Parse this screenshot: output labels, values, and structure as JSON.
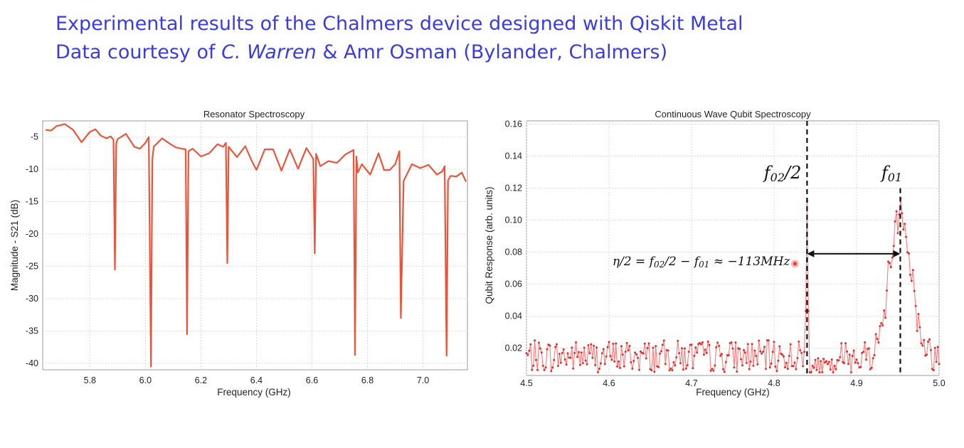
{
  "header": {
    "line1": "Experimental results of the Chalmers device designed with Qiskit Metal",
    "line2_prefix": "Data courtesy of ",
    "line2_italic": "C. Warren",
    "line2_suffix": " & Amr Osman (Bylander, Chalmers)"
  },
  "colors": {
    "title": "#3b3be0",
    "series": "#e8553a",
    "series_light": "#ff6f6f",
    "point": "#d93030"
  },
  "chart_data": [
    {
      "type": "line",
      "title": "Resonator Spectroscopy",
      "xlabel": "Frequency (GHz)",
      "ylabel": "Magnitude - S21 (dB)",
      "xlim": [
        5.63,
        7.16
      ],
      "ylim": [
        -41,
        -2.5
      ],
      "xticks": [
        "5.8",
        "6.0",
        "6.2",
        "6.4",
        "6.6",
        "6.8",
        "7.0"
      ],
      "yticks": [
        "-5",
        "-10",
        "-15",
        "-20",
        "-25",
        "-30",
        "-35",
        "-40"
      ],
      "grid": true,
      "series": [
        {
          "values": {
            "x": [
              5.64,
              5.66,
              5.68,
              5.71,
              5.74,
              5.77,
              5.8,
              5.82,
              5.84,
              5.86,
              5.875,
              5.885,
              5.89,
              5.895,
              5.9,
              5.93,
              5.96,
              5.98,
              6.0,
              6.012,
              6.02,
              6.025,
              6.03,
              6.06,
              6.09,
              6.11,
              6.13,
              6.145,
              6.15,
              6.155,
              6.17,
              6.2,
              6.23,
              6.26,
              6.28,
              6.29,
              6.295,
              6.3,
              6.33,
              6.36,
              6.38,
              6.4,
              6.43,
              6.46,
              6.49,
              6.52,
              6.55,
              6.58,
              6.605,
              6.61,
              6.615,
              6.63,
              6.66,
              6.69,
              6.72,
              6.75,
              6.755,
              6.76,
              6.765,
              6.78,
              6.81,
              6.84,
              6.86,
              6.88,
              6.9,
              6.915,
              6.92,
              6.93,
              6.96,
              6.99,
              7.02,
              7.05,
              7.07,
              7.078,
              7.085,
              7.09,
              7.1,
              7.12,
              7.14,
              7.155
            ],
            "y": [
              -3.9,
              -4.0,
              -3.3,
              -3.0,
              -3.9,
              -5.8,
              -4.2,
              -3.8,
              -4.8,
              -5.2,
              -4.9,
              -5.4,
              -25.5,
              -6.0,
              -5.3,
              -4.5,
              -6.5,
              -6.8,
              -5.9,
              -5.0,
              -40.5,
              -8.5,
              -6.5,
              -5.2,
              -6.1,
              -6.6,
              -6.8,
              -6.9,
              -35.5,
              -7.2,
              -6.8,
              -8.0,
              -7.5,
              -6.1,
              -6.5,
              -5.9,
              -24.5,
              -6.5,
              -8.1,
              -6.4,
              -8.4,
              -10.1,
              -6.9,
              -6.9,
              -10.2,
              -6.9,
              -9.9,
              -6.7,
              -8.4,
              -23.0,
              -7.6,
              -9.5,
              -8.7,
              -9.0,
              -7.7,
              -7.0,
              -38.7,
              -8.0,
              -10.5,
              -9.2,
              -10.8,
              -7.5,
              -10.1,
              -10.1,
              -9.2,
              -7.2,
              -33.0,
              -11.8,
              -9.2,
              -9.8,
              -9.3,
              -10.8,
              -10.3,
              -9.5,
              -38.8,
              -11.7,
              -11.0,
              -11.1,
              -10.5,
              -11.9
            ]
          }
        }
      ]
    },
    {
      "type": "scatter",
      "title": "Continuous Wave Qubit Spectroscopy",
      "xlabel": "Frequency (GHz)",
      "ylabel": "Qubit Response (arb. units)",
      "xlim": [
        4.5,
        5.0
      ],
      "ylim": [
        0.003,
        0.162
      ],
      "xticks": [
        "4.5",
        "4.6",
        "4.7",
        "4.8",
        "4.9",
        "5.0"
      ],
      "yticks": [
        "0.16",
        "0.14",
        "0.12",
        "0.10",
        "0.08",
        "0.06",
        "0.04",
        "0.02"
      ],
      "grid": true,
      "noise_level": 0.015,
      "peaks": [
        {
          "center": 4.84,
          "height": 0.103
        },
        {
          "center": 4.953,
          "height": 0.11
        }
      ],
      "markers": [
        {
          "x": 4.84,
          "label_main": "f",
          "label_sub": "02",
          "label_suffix": "/2"
        },
        {
          "x": 4.953,
          "label_main": "f",
          "label_sub": "01",
          "label_suffix": ""
        }
      ],
      "annotation": {
        "text": "η/2 = f",
        "sub1": "02",
        "mid": "/2 − f",
        "sub2": "01",
        "tail": " ≈ −113MHz",
        "arrow_y": 0.079
      }
    }
  ]
}
